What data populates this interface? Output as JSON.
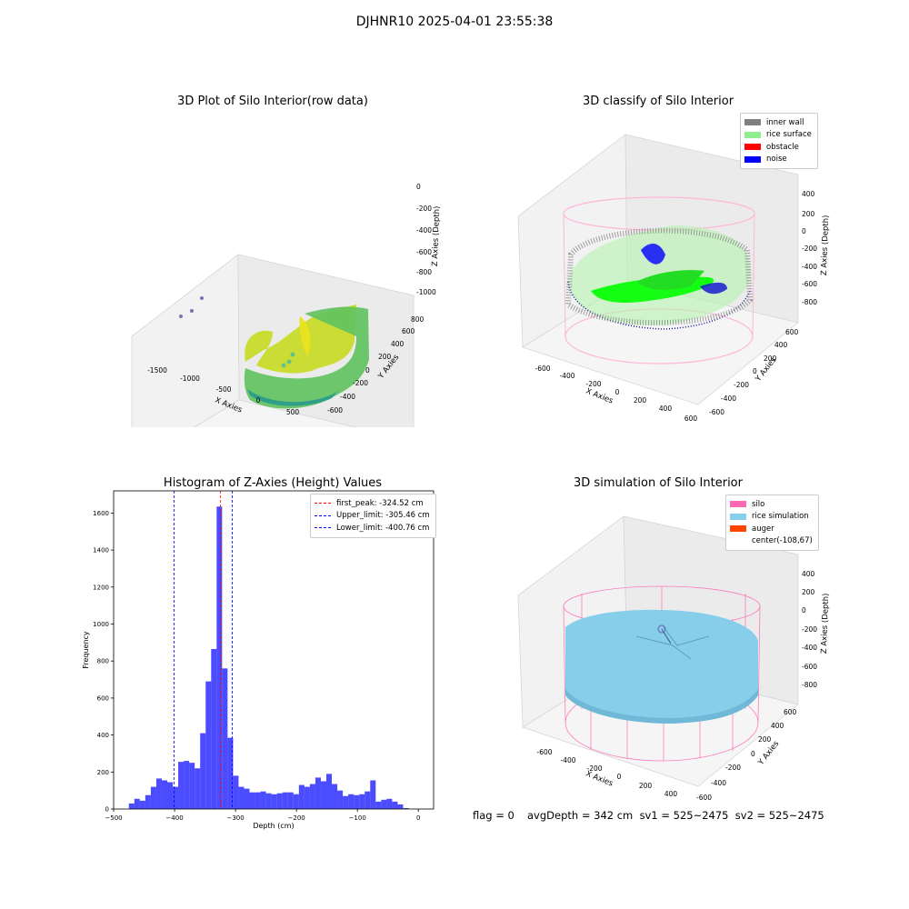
{
  "suptitle": "DJHNR10 2025-04-01 23:55:38",
  "chart_data": [
    {
      "type": "scatter",
      "title": "3D Plot of Silo Interior(row data)",
      "xlabel": "X Axies",
      "ylabel": "Y Axies",
      "zlabel": "Z Axies (Depth)",
      "x_ticks": [
        "-1500",
        "-1000",
        "-500",
        "0",
        "500"
      ],
      "y_ticks": [
        "-600",
        "-400",
        "-200",
        "0",
        "200",
        "400",
        "600",
        "800"
      ],
      "z_ticks": [
        "0",
        "-200",
        "-400",
        "-600",
        "-800",
        "-1000"
      ],
      "colormap": "viridis"
    },
    {
      "type": "scatter",
      "title": "3D classify of Silo Interior",
      "xlabel": "X Axies",
      "ylabel": "Y Axies",
      "zlabel": "Z Axies (Depth)",
      "x_ticks": [
        "-600",
        "-400",
        "-200",
        "0",
        "200",
        "400",
        "600"
      ],
      "y_ticks": [
        "-600",
        "-400",
        "-200",
        "0",
        "200",
        "400",
        "600"
      ],
      "z_ticks": [
        "400",
        "200",
        "0",
        "-200",
        "-400",
        "-600",
        "-800"
      ],
      "legend": [
        {
          "label": "inner wall",
          "color": "#808080"
        },
        {
          "label": "rice surface",
          "color": "#90ee90"
        },
        {
          "label": "obstacle",
          "color": "#ff0000"
        },
        {
          "label": "noise",
          "color": "#0000ff"
        }
      ]
    },
    {
      "type": "bar",
      "title": "Histogram of Z-Axies (Height) Values",
      "xlabel": "Depth (cm)",
      "ylabel": "Frequency",
      "xlim": [
        -500,
        25
      ],
      "ylim": [
        0,
        1720
      ],
      "x_ticks": [
        -500,
        -400,
        -300,
        -200,
        -100,
        0
      ],
      "y_ticks": [
        0,
        200,
        400,
        600,
        800,
        1000,
        1200,
        1400,
        1600
      ],
      "bar_color": "#0000ff",
      "bins": [
        {
          "x0": -475,
          "x1": -466,
          "count": 30
        },
        {
          "x0": -466,
          "x1": -457,
          "count": 55
        },
        {
          "x0": -457,
          "x1": -448,
          "count": 45
        },
        {
          "x0": -448,
          "x1": -439,
          "count": 75
        },
        {
          "x0": -439,
          "x1": -430,
          "count": 120
        },
        {
          "x0": -430,
          "x1": -421,
          "count": 165
        },
        {
          "x0": -421,
          "x1": -412,
          "count": 155
        },
        {
          "x0": -412,
          "x1": -403,
          "count": 145
        },
        {
          "x0": -403,
          "x1": -394,
          "count": 120
        },
        {
          "x0": -394,
          "x1": -385,
          "count": 255
        },
        {
          "x0": -385,
          "x1": -376,
          "count": 260
        },
        {
          "x0": -376,
          "x1": -367,
          "count": 250
        },
        {
          "x0": -367,
          "x1": -358,
          "count": 220
        },
        {
          "x0": -358,
          "x1": -349,
          "count": 410
        },
        {
          "x0": -349,
          "x1": -340,
          "count": 690
        },
        {
          "x0": -340,
          "x1": -331,
          "count": 865
        },
        {
          "x0": -331,
          "x1": -322,
          "count": 1635
        },
        {
          "x0": -322,
          "x1": -313,
          "count": 760
        },
        {
          "x0": -313,
          "x1": -304,
          "count": 385
        },
        {
          "x0": -304,
          "x1": -295,
          "count": 180
        },
        {
          "x0": -295,
          "x1": -286,
          "count": 120
        },
        {
          "x0": -286,
          "x1": -277,
          "count": 110
        },
        {
          "x0": -277,
          "x1": -268,
          "count": 90
        },
        {
          "x0": -268,
          "x1": -259,
          "count": 90
        },
        {
          "x0": -259,
          "x1": -250,
          "count": 95
        },
        {
          "x0": -250,
          "x1": -241,
          "count": 85
        },
        {
          "x0": -241,
          "x1": -232,
          "count": 80
        },
        {
          "x0": -232,
          "x1": -223,
          "count": 85
        },
        {
          "x0": -223,
          "x1": -214,
          "count": 90
        },
        {
          "x0": -214,
          "x1": -205,
          "count": 90
        },
        {
          "x0": -205,
          "x1": -196,
          "count": 80
        },
        {
          "x0": -196,
          "x1": -187,
          "count": 130
        },
        {
          "x0": -187,
          "x1": -178,
          "count": 120
        },
        {
          "x0": -178,
          "x1": -169,
          "count": 135
        },
        {
          "x0": -169,
          "x1": -160,
          "count": 170
        },
        {
          "x0": -160,
          "x1": -151,
          "count": 150
        },
        {
          "x0": -151,
          "x1": -142,
          "count": 190
        },
        {
          "x0": -142,
          "x1": -133,
          "count": 135
        },
        {
          "x0": -133,
          "x1": -124,
          "count": 100
        },
        {
          "x0": -124,
          "x1": -115,
          "count": 70
        },
        {
          "x0": -115,
          "x1": -106,
          "count": 80
        },
        {
          "x0": -106,
          "x1": -97,
          "count": 75
        },
        {
          "x0": -97,
          "x1": -88,
          "count": 80
        },
        {
          "x0": -88,
          "x1": -79,
          "count": 95
        },
        {
          "x0": -79,
          "x1": -70,
          "count": 155
        },
        {
          "x0": -70,
          "x1": -61,
          "count": 40
        },
        {
          "x0": -61,
          "x1": -52,
          "count": 50
        },
        {
          "x0": -52,
          "x1": -43,
          "count": 55
        },
        {
          "x0": -43,
          "x1": -34,
          "count": 40
        },
        {
          "x0": -34,
          "x1": -25,
          "count": 25
        },
        {
          "x0": -25,
          "x1": -16,
          "count": 5
        }
      ],
      "vlines": [
        {
          "label": "first_peak: -324.52 cm",
          "x": -324.52,
          "color": "#ff0000"
        },
        {
          "label": "Upper_limit: -305.46 cm",
          "x": -305.46,
          "color": "#0000ff"
        },
        {
          "label": "Lower_limit: -400.76 cm",
          "x": -400.76,
          "color": "#0000ff"
        }
      ]
    },
    {
      "type": "surface",
      "title": "3D simulation of Silo Interior",
      "xlabel": "X Axies",
      "ylabel": "Y Axies",
      "zlabel": "Z Axies (Depth)",
      "x_ticks": [
        "-600",
        "-400",
        "-200",
        "0",
        "200",
        "400"
      ],
      "y_ticks": [
        "-600",
        "-400",
        "-200",
        "0",
        "200",
        "400",
        "600"
      ],
      "z_ticks": [
        "400",
        "200",
        "0",
        "-200",
        "-400",
        "-600",
        "-800"
      ],
      "legend": [
        {
          "label": "silo",
          "color": "#ff69b4"
        },
        {
          "label": "rice simulation",
          "color": "#87ceeb"
        },
        {
          "label": "auger",
          "color": "#ff4500"
        },
        {
          "label": "center(-108,67)",
          "color": ""
        }
      ]
    }
  ],
  "footer": {
    "flag": "flag = 0",
    "stats": "avgDepth = 342 cm  sv1 = 525~2475  sv2 = 525~2475"
  }
}
